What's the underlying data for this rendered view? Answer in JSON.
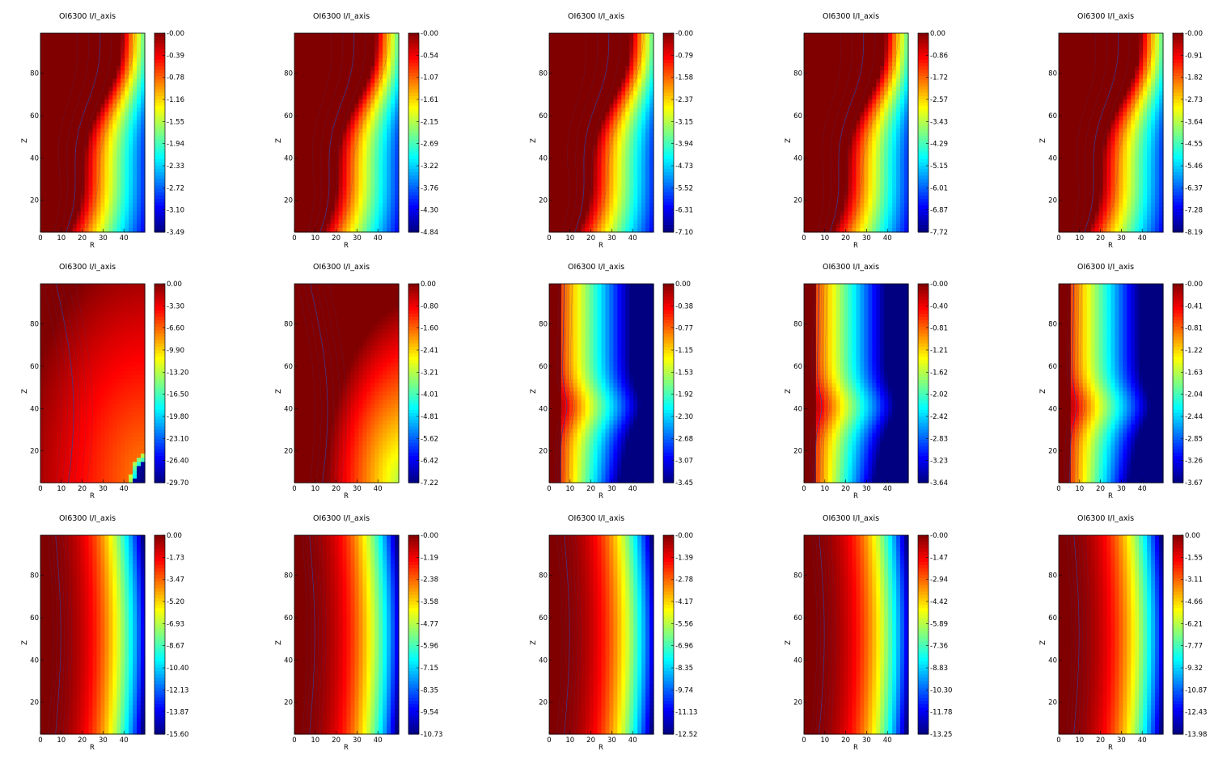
{
  "chart_data": {
    "type": "heatmap",
    "colormap": "jet",
    "colors": {
      "low": "#00008f",
      "high": "#800000",
      "contour": "#3b3b8f"
    },
    "layout": {
      "rows": 3,
      "cols": 5
    },
    "x_ticks": [
      "0",
      "10",
      "20",
      "30",
      "40"
    ],
    "y_ticks": [
      "20",
      "40",
      "60",
      "80"
    ],
    "xlim": [
      0,
      50
    ],
    "ylim": [
      5,
      99
    ],
    "panels": [
      {
        "title": "OI6300 I/I_axis",
        "xlabel": "R",
        "ylabel": "Z",
        "pattern": "diagonal",
        "vmin": -3.49,
        "colorbar_ticks": [
          "-0.00",
          "-0.39",
          "-0.78",
          "-1.16",
          "-1.55",
          "-1.94",
          "-2.33",
          "-2.72",
          "-3.10",
          "-3.49"
        ]
      },
      {
        "title": "OI6300 I/I_axis",
        "xlabel": "R",
        "ylabel": "Z",
        "pattern": "diagonal",
        "vmin": -4.84,
        "colorbar_ticks": [
          "-0.00",
          "-0.54",
          "-1.07",
          "-1.61",
          "-2.15",
          "-2.69",
          "-3.22",
          "-3.76",
          "-4.30",
          "-4.84"
        ]
      },
      {
        "title": "OI6300 I/I_axis",
        "xlabel": "R",
        "ylabel": "Z",
        "pattern": "diagonal",
        "vmin": -7.1,
        "colorbar_ticks": [
          "-0.00",
          "-0.79",
          "-1.58",
          "-2.37",
          "-3.15",
          "-3.94",
          "-4.73",
          "-5.52",
          "-6.31",
          "-7.10"
        ]
      },
      {
        "title": "OI6300 I/I_axis",
        "xlabel": "R",
        "ylabel": "Z",
        "pattern": "diagonal",
        "vmin": -7.72,
        "colorbar_ticks": [
          "0.00",
          "-0.86",
          "-1.72",
          "-2.57",
          "-3.43",
          "-4.29",
          "-5.15",
          "-6.01",
          "-6.87",
          "-7.72"
        ]
      },
      {
        "title": "OI6300 I/I_axis",
        "xlabel": "R",
        "ylabel": "Z",
        "pattern": "diagonal",
        "vmin": -8.19,
        "colorbar_ticks": [
          "-0.00",
          "-0.91",
          "-1.82",
          "-2.73",
          "-3.64",
          "-4.55",
          "-5.46",
          "-6.37",
          "-7.28",
          "-8.19"
        ]
      },
      {
        "title": "OI6300 I/I_axis",
        "xlabel": "R",
        "ylabel": "Z",
        "pattern": "corner",
        "vmin": -29.7,
        "colorbar_ticks": [
          "0.00",
          "-3.30",
          "-6.60",
          "-9.90",
          "-13.20",
          "-16.50",
          "-19.80",
          "-23.10",
          "-26.40",
          "-29.70"
        ]
      },
      {
        "title": "OI6300 I/I_axis",
        "xlabel": "R",
        "ylabel": "Z",
        "pattern": "corner2",
        "vmin": -7.22,
        "colorbar_ticks": [
          "0.00",
          "-0.80",
          "-1.60",
          "-2.41",
          "-3.21",
          "-4.01",
          "-4.81",
          "-5.62",
          "-6.42",
          "-7.22"
        ]
      },
      {
        "title": "OI6300 I/I_axis",
        "xlabel": "R",
        "ylabel": "Z",
        "pattern": "kink",
        "vmin": -3.45,
        "colorbar_ticks": [
          "0.00",
          "-0.38",
          "-0.77",
          "-1.15",
          "-1.53",
          "-1.92",
          "-2.30",
          "-2.68",
          "-3.07",
          "-3.45"
        ]
      },
      {
        "title": "OI6300 I/I_axis",
        "xlabel": "R",
        "ylabel": "Z",
        "pattern": "kink",
        "vmin": -3.64,
        "colorbar_ticks": [
          "-0.00",
          "-0.40",
          "-0.81",
          "-1.21",
          "-1.62",
          "-2.02",
          "-2.42",
          "-2.83",
          "-3.23",
          "-3.64"
        ]
      },
      {
        "title": "OI6300 I/I_axis",
        "xlabel": "R",
        "ylabel": "Z",
        "pattern": "kink",
        "vmin": -3.67,
        "colorbar_ticks": [
          "-0.00",
          "-0.41",
          "-0.81",
          "-1.22",
          "-1.63",
          "-2.04",
          "-2.44",
          "-2.85",
          "-3.26",
          "-3.67"
        ]
      },
      {
        "title": "OI6300 I/I_axis",
        "xlabel": "R",
        "ylabel": "Z",
        "pattern": "radial",
        "vmin": -15.6,
        "colorbar_ticks": [
          "0.00",
          "-1.73",
          "-3.47",
          "-5.20",
          "-6.93",
          "-8.67",
          "-10.40",
          "-12.13",
          "-13.87",
          "-15.60"
        ]
      },
      {
        "title": "OI6300 I/I_axis",
        "xlabel": "R",
        "ylabel": "Z",
        "pattern": "radial",
        "vmin": -10.73,
        "colorbar_ticks": [
          "-0.00",
          "-1.19",
          "-2.38",
          "-3.58",
          "-4.77",
          "-5.96",
          "-7.15",
          "-8.35",
          "-9.54",
          "-10.73"
        ]
      },
      {
        "title": "OI6300 I/I_axis",
        "xlabel": "R",
        "ylabel": "Z",
        "pattern": "radial",
        "vmin": -12.52,
        "colorbar_ticks": [
          "-0.00",
          "-1.39",
          "-2.78",
          "-4.17",
          "-5.56",
          "-6.96",
          "-8.35",
          "-9.74",
          "-11.13",
          "-12.52"
        ]
      },
      {
        "title": "OI6300 I/I_axis",
        "xlabel": "R",
        "ylabel": "Z",
        "pattern": "radial",
        "vmin": -13.25,
        "colorbar_ticks": [
          "-0.00",
          "-1.47",
          "-2.94",
          "-4.42",
          "-5.89",
          "-7.36",
          "-8.83",
          "-10.30",
          "-11.78",
          "-13.25"
        ]
      },
      {
        "title": "OI6300 I/I_axis",
        "xlabel": "R",
        "ylabel": "Z",
        "pattern": "radial",
        "vmin": -13.98,
        "colorbar_ticks": [
          "0.00",
          "-1.55",
          "-3.11",
          "-4.66",
          "-6.21",
          "-7.77",
          "-9.32",
          "-10.87",
          "-12.43",
          "-13.98"
        ]
      }
    ]
  }
}
